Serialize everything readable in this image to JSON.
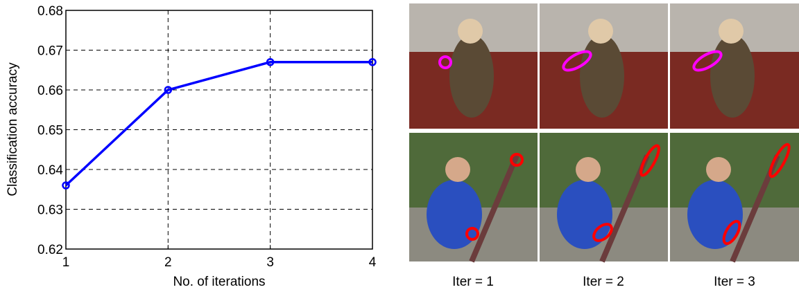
{
  "chart_data": {
    "type": "line",
    "x_label": "No. of iterations",
    "y_label": "Classification accuracy",
    "x": [
      1,
      2,
      3,
      4
    ],
    "series": [
      {
        "name": "accuracy",
        "color": "#0000ff",
        "values": [
          0.636,
          0.66,
          0.667,
          0.667
        ]
      }
    ],
    "xlim": [
      1,
      4
    ],
    "xticks": [
      1,
      2,
      3,
      4
    ],
    "ylim": [
      0.62,
      0.68
    ],
    "yticks": [
      0.62,
      0.63,
      0.64,
      0.65,
      0.66,
      0.67,
      0.68
    ],
    "grid": true
  },
  "image_captions": [
    "Iter = 1",
    "Iter = 2",
    "Iter = 3"
  ]
}
